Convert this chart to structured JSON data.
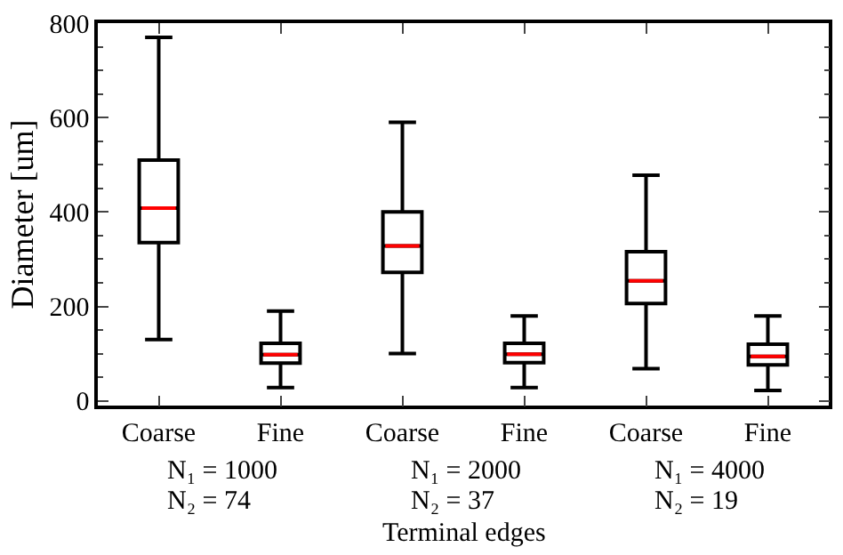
{
  "chart_data": {
    "type": "box",
    "xlabel": "Terminal edges",
    "ylabel": "Diameter [um]",
    "categories": [
      "Coarse",
      "Fine",
      "Coarse",
      "Fine",
      "Coarse",
      "Fine"
    ],
    "series": [
      {
        "color": "#000000",
        "boxes": [
          {
            "low": 130,
            "q1": 335,
            "median": 408,
            "q3": 510,
            "high": 770
          },
          {
            "low": 28,
            "q1": 80,
            "median": 98,
            "q3": 122,
            "high": 190
          },
          {
            "low": 100,
            "q1": 272,
            "median": 328,
            "q3": 400,
            "high": 590
          },
          {
            "low": 28,
            "q1": 81,
            "median": 99,
            "q3": 122,
            "high": 180
          },
          {
            "low": 68,
            "q1": 206,
            "median": 254,
            "q3": 316,
            "high": 478
          },
          {
            "low": 22,
            "q1": 76,
            "median": 94,
            "q3": 120,
            "high": 180
          }
        ]
      }
    ],
    "ylim": [
      -10,
      800
    ],
    "yticks": [
      0,
      200,
      400,
      600,
      800
    ],
    "annotations": [
      "N₁ = 1000\nN₂ = 74",
      "N₁ = 2000\nN₂ = 37",
      "N₁ = 4000\nN₂ = 19"
    ]
  }
}
